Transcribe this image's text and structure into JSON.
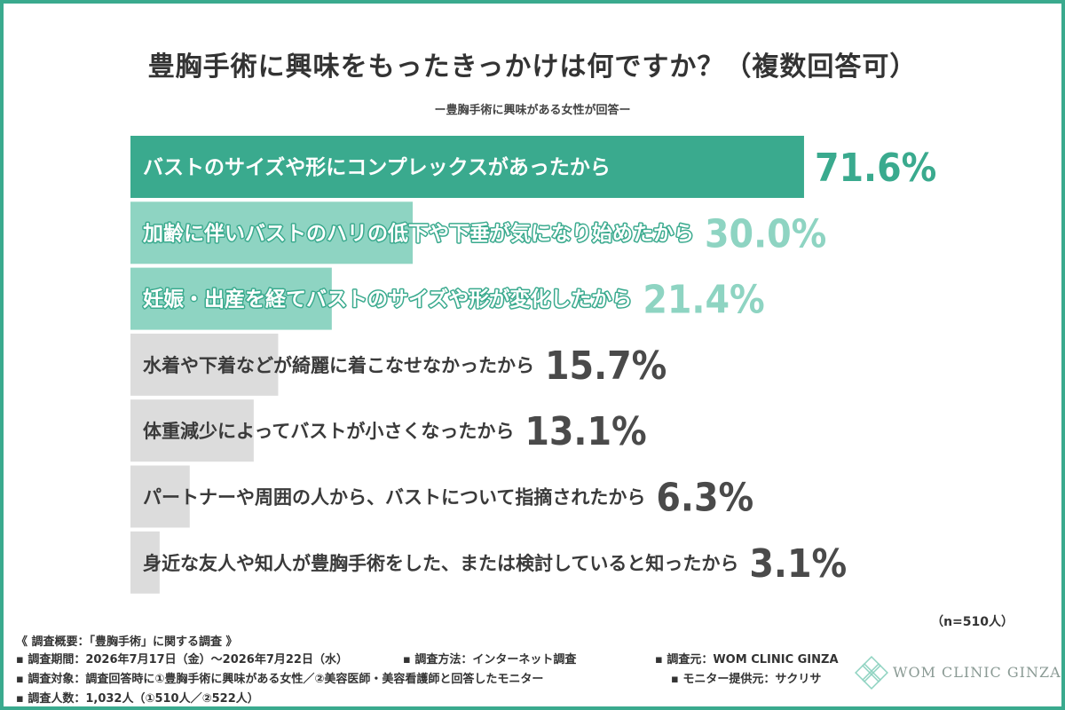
{
  "title": "豊胸手術に興味をもったきっかけは何ですか？（複数回答可）",
  "subtitle": "ー豊胸手術に興味がある女性が回答ー",
  "n_label": "（n=510人）",
  "colors": {
    "frame": "#3aaa8e",
    "bar_primary": "#3aaa8e",
    "bar_secondary": "#8ed4c2",
    "bar_gray": "#dcdcdc",
    "text_dark": "#3a3a3a"
  },
  "chart_data": {
    "type": "bar",
    "orientation": "horizontal",
    "title": "豊胸手術に興味をもったきっかけは何ですか？（複数回答可）",
    "categories": [
      "バストのサイズや形にコンプレックスがあったから",
      "加齢に伴いバストのハリの低下や下垂が気になり始めたから",
      "妊娠・出産を経てバストのサイズや形が変化したから",
      "水着や下着などが綺麗に着こなせなかったから",
      "体重減少によってバストが小さくなったから",
      "パートナーや周囲の人から、バストについて指摘されたから",
      "身近な友人や知人が豊胸手術をした、または検討していると知ったから"
    ],
    "values": [
      71.6,
      30.0,
      21.4,
      15.7,
      13.1,
      6.3,
      3.1
    ],
    "value_labels": [
      "71.6%",
      "30.0%",
      "21.4%",
      "15.7%",
      "13.1%",
      "6.3%",
      "3.1%"
    ],
    "unit": "%"
  },
  "survey_notes": {
    "heading": "《 調査概要：「豊胸手術」に関する調査 》",
    "period": "▪ 調査期間：2026年7月17日（金）〜2026年7月22日（水）",
    "method": "▪ 調査方法：インターネット調査",
    "source": "▪ 調査元：WOM CLINIC GINZA",
    "target": "▪ 調査対象：調査回答時に①豊胸手術に興味がある女性／②美容医師・美容看護師と回答したモニター",
    "provider": "▪ モニター提供元：サクリサ",
    "count": "▪ 調査人数：1,032人（①510人／②522人）"
  },
  "logo": {
    "text": "WOM CLINIC GINZA",
    "icon": "diamond-lattice-logo-icon"
  }
}
